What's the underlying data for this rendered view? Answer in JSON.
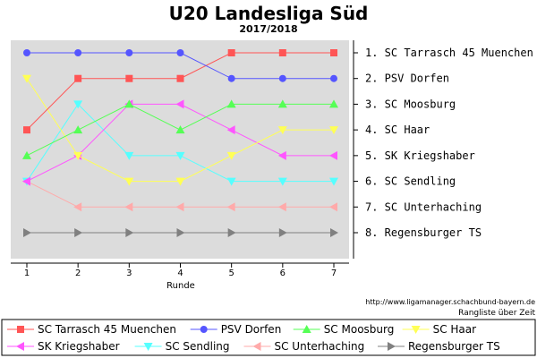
{
  "chart_data": {
    "type": "line",
    "title": "U20 Landesliga Süd",
    "subtitle": "2017/2018",
    "xlabel": "Runde",
    "x": [
      1,
      2,
      3,
      4,
      5,
      6,
      7
    ],
    "ylim": [
      1,
      8
    ],
    "y_inverted": true,
    "grid": false,
    "legend_position": "bottom",
    "y_tick_labels": [
      "1. SC Tarrasch 45 Muenchen",
      "2. PSV Dorfen",
      "3. SC Moosburg",
      "4. SC Haar",
      "5. SK Kriegshaber",
      "6. SC Sendling",
      "7. SC Unterhaching",
      "8. Regensburger TS"
    ],
    "series": [
      {
        "name": "SC Tarrasch 45 Muenchen",
        "color": "#ff5555",
        "marker": "square",
        "values": [
          4,
          2,
          2,
          2,
          1,
          1,
          1
        ]
      },
      {
        "name": "PSV Dorfen",
        "color": "#5555ff",
        "marker": "circle",
        "values": [
          1,
          1,
          1,
          1,
          2,
          2,
          2
        ]
      },
      {
        "name": "SC Moosburg",
        "color": "#55ff55",
        "marker": "triangle-up",
        "values": [
          5,
          4,
          3,
          4,
          3,
          3,
          3
        ]
      },
      {
        "name": "SC Haar",
        "color": "#ffff55",
        "marker": "triangle-down",
        "values": [
          2,
          5,
          6,
          6,
          5,
          4,
          4
        ]
      },
      {
        "name": "SK Kriegshaber",
        "color": "#ff55ff",
        "marker": "triangle-left",
        "values": [
          6,
          5,
          3,
          3,
          4,
          5,
          5
        ]
      },
      {
        "name": "SC Sendling",
        "color": "#55ffff",
        "marker": "triangle-down",
        "values": [
          6,
          3,
          5,
          5,
          6,
          6,
          6
        ]
      },
      {
        "name": "SC Unterhaching",
        "color": "#ffaaaa",
        "marker": "triangle-left",
        "values": [
          6,
          7,
          7,
          7,
          7,
          7,
          7
        ]
      },
      {
        "name": "Regensburger TS",
        "color": "#808080",
        "marker": "triangle-right",
        "values": [
          8,
          8,
          8,
          8,
          8,
          8,
          8
        ]
      }
    ]
  },
  "source_url": "http://www.ligamanager.schachbund-bayern.de",
  "caption": "Rangliste über Zeit"
}
